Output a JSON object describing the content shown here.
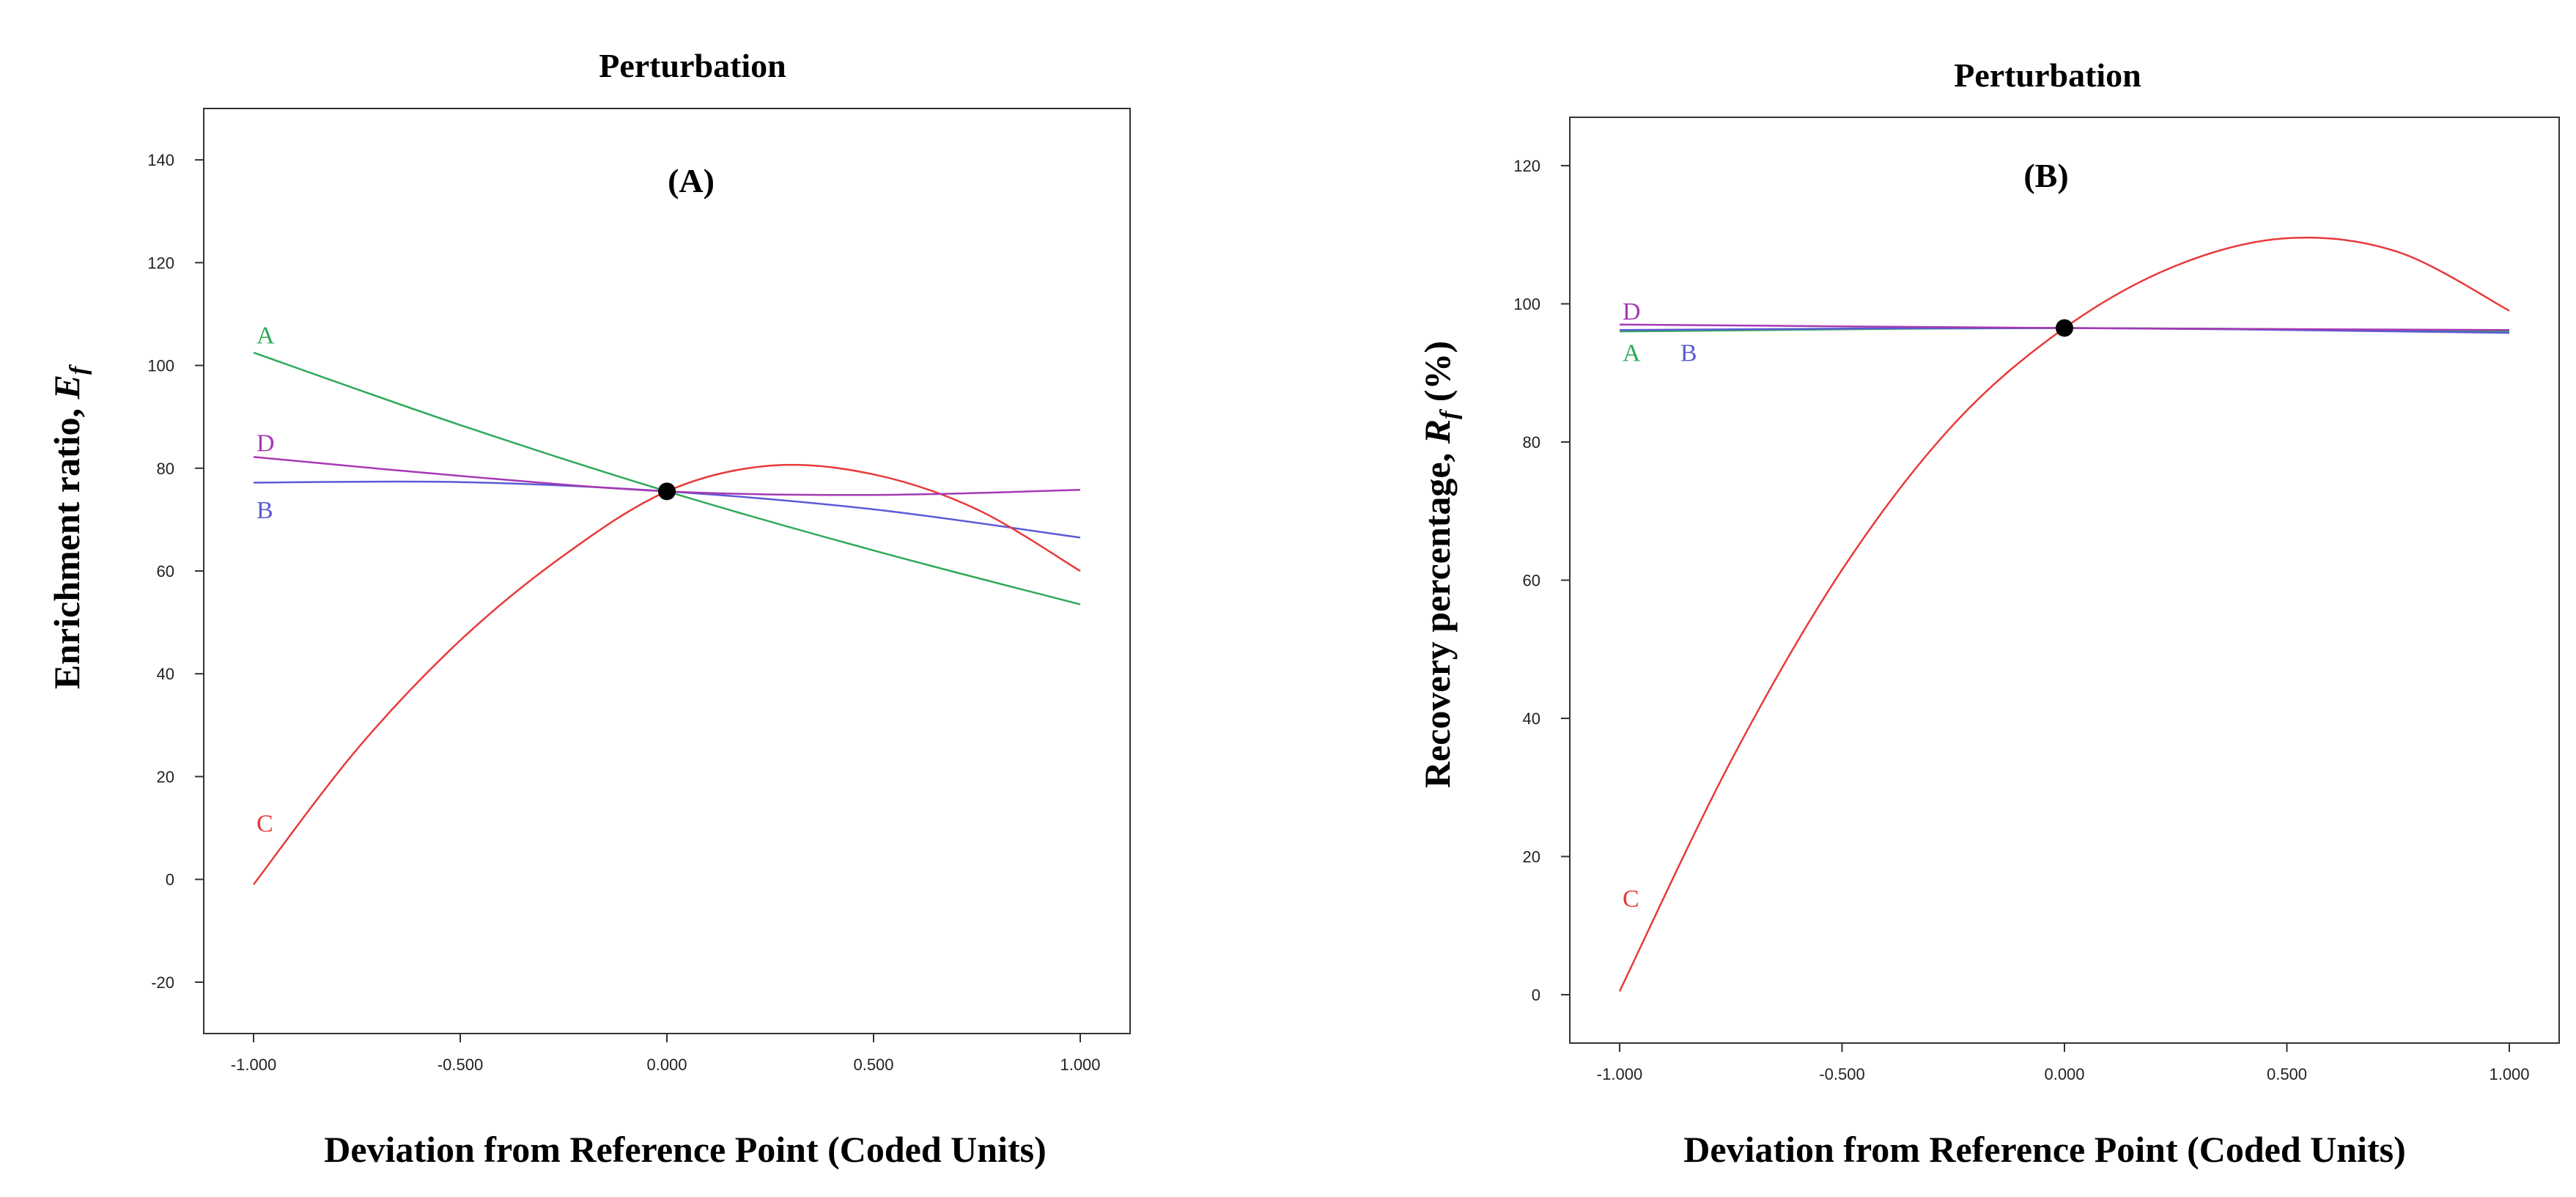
{
  "chart_data": [
    {
      "type": "line",
      "title": "Perturbation",
      "panel_label": "(A)",
      "xlabel": "Deviation from Reference Point (Coded Units)",
      "ylabel_main": "Enrichment ratio, ",
      "ylabel_sym": "E",
      "ylabel_sub": "f",
      "ylabel_tail": "",
      "xlim": [
        -1.0,
        1.0
      ],
      "ylim": [
        -30,
        150
      ],
      "xticks": [
        -1.0,
        -0.5,
        0.0,
        0.5,
        1.0
      ],
      "xtick_labels": [
        "-1.000",
        "-0.500",
        "0.000",
        "0.500",
        "1.000"
      ],
      "yticks": [
        -20,
        0,
        20,
        40,
        60,
        80,
        100,
        120,
        140
      ],
      "ytick_labels": [
        "-20",
        "0",
        "20",
        "40",
        "60",
        "80",
        "100",
        "120",
        "140"
      ],
      "reference_point": {
        "x": 0.0,
        "y": 75.5
      },
      "series": [
        {
          "name": "A",
          "color": "#2eaa58",
          "x": [
            -1.0,
            -0.5,
            0.0,
            0.5,
            1.0
          ],
          "y": [
            102.5,
            88.4,
            75.5,
            64.0,
            53.5
          ],
          "label_at": [
            -1.0,
            106
          ]
        },
        {
          "name": "B",
          "color": "#5b5bd6",
          "x": [
            -1.0,
            -0.5,
            0.0,
            0.5,
            1.0
          ],
          "y": [
            77.2,
            77.3,
            75.5,
            72.0,
            66.5
          ],
          "label_at": [
            -1.0,
            72
          ]
        },
        {
          "name": "C",
          "color": "#e83a3a",
          "x": [
            -1.0,
            -0.75,
            -0.5,
            -0.25,
            0.0,
            0.25,
            0.5,
            0.75,
            1.0
          ],
          "y": [
            -1.0,
            25.3,
            46.5,
            63.0,
            75.5,
            80.5,
            78.8,
            72.0,
            60.0
          ],
          "label_at": [
            -1.0,
            11
          ]
        },
        {
          "name": "D",
          "color": "#a53ab3",
          "x": [
            -1.0,
            -0.5,
            0.0,
            0.5,
            1.0
          ],
          "y": [
            82.2,
            78.5,
            75.5,
            74.8,
            75.8
          ],
          "label_at": [
            -1.0,
            85
          ]
        }
      ]
    },
    {
      "type": "line",
      "title": "Perturbation",
      "panel_label": "(B)",
      "xlabel": "Deviation from Reference Point (Coded Units)",
      "ylabel_main": "Recovery percentage, ",
      "ylabel_sym": "R",
      "ylabel_sub": "f",
      "ylabel_tail": " (%)",
      "xlim": [
        -1.0,
        1.0
      ],
      "ylim": [
        -7,
        127
      ],
      "xticks": [
        -1.0,
        -0.5,
        0.0,
        0.5,
        1.0
      ],
      "xtick_labels": [
        "-1.000",
        "-0.500",
        "0.000",
        "0.500",
        "1.000"
      ],
      "yticks": [
        0,
        20,
        40,
        60,
        80,
        100,
        120
      ],
      "ytick_labels": [
        "0",
        "20",
        "40",
        "60",
        "80",
        "100",
        "120"
      ],
      "reference_point": {
        "x": 0.0,
        "y": 96.5
      },
      "series": [
        {
          "name": "A",
          "color": "#2eaa58",
          "x": [
            -1.0,
            0.0,
            1.0
          ],
          "y": [
            96.0,
            96.5,
            96.0
          ],
          "label_at": [
            -1.0,
            93
          ]
        },
        {
          "name": "B",
          "color": "#5b5bd6",
          "x": [
            -1.0,
            0.0,
            1.0
          ],
          "y": [
            96.2,
            96.5,
            95.8
          ],
          "label_at": [
            -0.87,
            93
          ]
        },
        {
          "name": "C",
          "color": "#e83a3a",
          "x": [
            -1.0,
            -0.75,
            -0.5,
            -0.25,
            0.0,
            0.25,
            0.5,
            0.75,
            1.0
          ],
          "y": [
            0.5,
            33.8,
            61.5,
            82.5,
            96.5,
            105.5,
            109.5,
            107.5,
            99.0
          ],
          "label_at": [
            -1.0,
            14
          ]
        },
        {
          "name": "D",
          "color": "#a53ab3",
          "x": [
            -1.0,
            0.0,
            1.0
          ],
          "y": [
            97.0,
            96.5,
            96.2
          ],
          "label_at": [
            -1.0,
            99
          ]
        }
      ]
    }
  ]
}
